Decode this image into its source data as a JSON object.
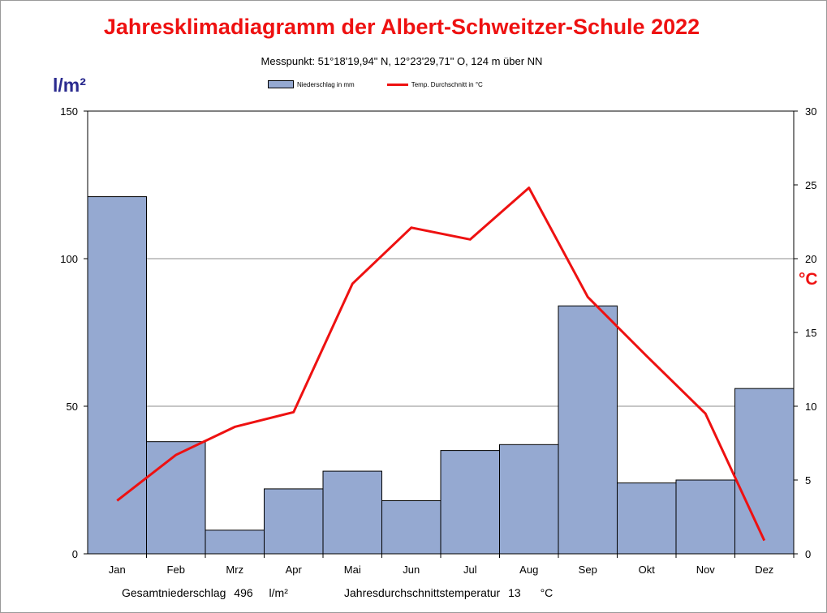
{
  "chart_data": {
    "type": "bar",
    "title": "Jahresklimadiagramm der Albert-Schweitzer-Schule 2022",
    "subtitle": "Messpunkt:  51°18'19,94\" N,  12°23'29,71\" O,  124 m über NN",
    "ylabel_left": "l/m²",
    "ylabel_right": "°C",
    "categories": [
      "Jan",
      "Feb",
      "Mrz",
      "Apr",
      "Mai",
      "Jun",
      "Jul",
      "Aug",
      "Sep",
      "Okt",
      "Nov",
      "Dez"
    ],
    "series": [
      {
        "name": "Niederschlag in mm",
        "type": "bar",
        "axis": "left",
        "color": "#95a9d1",
        "values": [
          121,
          38,
          8,
          22,
          28,
          18,
          35,
          37,
          84,
          24,
          25,
          56
        ]
      },
      {
        "name": "Temp. Durchschnitt in °C",
        "type": "line",
        "axis": "right",
        "color": "#ee1111",
        "values": [
          3.6,
          6.7,
          8.6,
          9.6,
          18.3,
          22.1,
          21.3,
          24.8,
          17.4,
          13.4,
          9.5,
          0.9
        ]
      }
    ],
    "ylim_left": [
      0,
      150
    ],
    "yticks_left": [
      0,
      50,
      100,
      150
    ],
    "ylim_right": [
      0,
      30
    ],
    "yticks_right": [
      0,
      5,
      10,
      15,
      20,
      25,
      30
    ],
    "grid": true,
    "legend_position": "top-center"
  },
  "footer": {
    "precip_label": "Gesamtniederschlag",
    "precip_value": "496",
    "precip_unit": "l/m²",
    "temp_label": "Jahresdurchschnittstemperatur",
    "temp_value": "13",
    "temp_unit": "°C"
  }
}
